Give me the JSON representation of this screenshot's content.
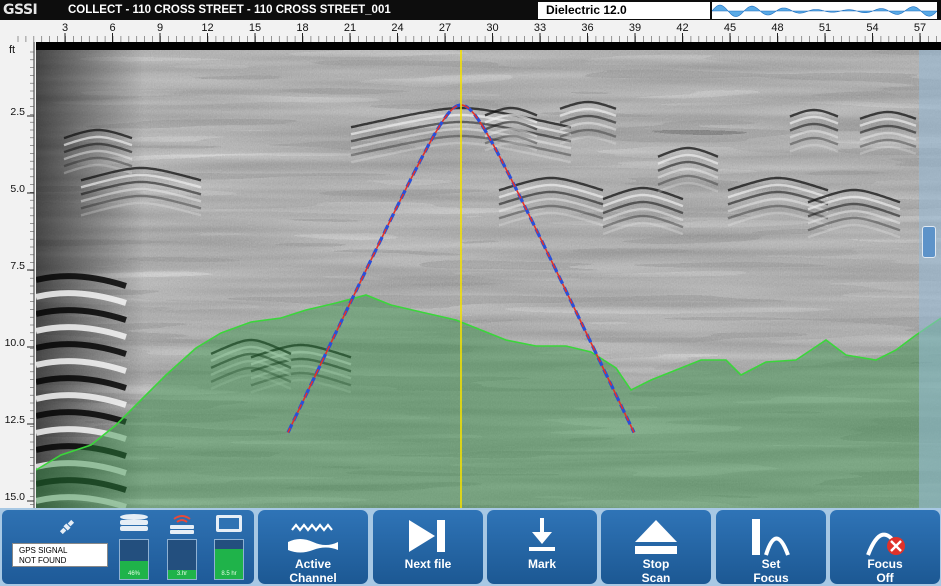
{
  "header": {
    "logo": "GSSI",
    "title": "COLLECT - 110 CROSS STREET - 110 CROSS STREET_001",
    "dielectric": "Dielectric 12.0"
  },
  "ruler": {
    "x_ticks": [
      "3",
      "6",
      "9",
      "12",
      "15",
      "18",
      "21",
      "24",
      "27",
      "30",
      "33",
      "36",
      "39",
      "42",
      "45",
      "48",
      "51",
      "54",
      "57"
    ],
    "unit": "ft",
    "y_ticks": [
      "2.5",
      "5.0",
      "7.5",
      "10.0",
      "12.5",
      "15.0"
    ]
  },
  "colors": {
    "button_blue": "#1f5d9a",
    "toolbar_bg": "#a7c8e4",
    "ground_line": "#3bd63b",
    "cursor_line": "#f5e100",
    "hyperbola_red": "#e0322a",
    "hyperbola_blue": "#2a4fd8"
  },
  "status": {
    "gps_icon": "satellite-icon",
    "gps_text_1": "GPS SIGNAL",
    "gps_text_2": "NOT FOUND",
    "storage": {
      "icon": "database-icon",
      "value": "46%",
      "level": 0.46
    },
    "signal": {
      "icon": "antenna-icon",
      "value": "3.hr",
      "level": 0.22
    },
    "battery": {
      "icon": "battery-icon",
      "value": "8.5 hr",
      "level": 0.78
    }
  },
  "toolbar": {
    "buttons": [
      {
        "line1": "Active",
        "line2": "Channel",
        "icon": "wave-channel-icon"
      },
      {
        "line1": "Next file",
        "line2": "",
        "icon": "next-file-icon"
      },
      {
        "line1": "Mark",
        "line2": "",
        "icon": "mark-arrow-icon"
      },
      {
        "line1": "Stop",
        "line2": "Scan",
        "icon": "eject-stop-icon"
      },
      {
        "line1": "Set",
        "line2": "Focus",
        "icon": "set-focus-icon"
      },
      {
        "line1": "Focus",
        "line2": "Off",
        "icon": "focus-off-icon"
      }
    ]
  }
}
